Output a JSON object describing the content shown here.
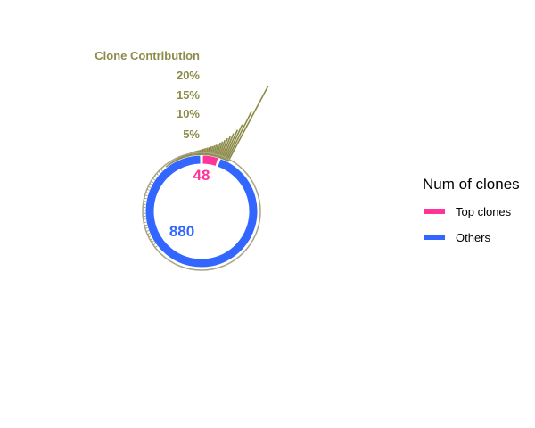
{
  "colors": {
    "top": "#ff3399",
    "others": "#3366ff",
    "spike": "#8c8b4a",
    "outer_ring": "#aaa488"
  },
  "chart_data": {
    "type": "pie",
    "title": "Clone Contribution",
    "radial_axis": {
      "ticks": [
        5,
        10,
        15,
        20
      ],
      "tick_labels": [
        "5%",
        "10%",
        "15%",
        "20%"
      ],
      "ylim": [
        0,
        20
      ]
    },
    "categories": [
      "Top clones",
      "Others"
    ],
    "values": [
      48,
      880
    ],
    "legend": {
      "title": "Num of clones",
      "entries": [
        "Top clones",
        "Others"
      ],
      "position": "right"
    },
    "clone_contribution_percent": [
      16.5,
      10.6,
      7.6,
      6.3,
      5.4,
      4.6,
      4.1,
      3.6,
      3.2,
      2.9,
      2.6,
      2.3,
      2.1,
      1.9,
      1.8,
      1.6,
      1.5,
      1.4,
      1.3,
      1.2,
      1.1,
      1.0,
      0.95,
      0.9,
      0.85,
      0.8,
      0.75,
      0.7,
      0.66,
      0.62,
      0.58,
      0.55,
      0.52,
      0.49,
      0.46,
      0.44,
      0.42,
      0.4,
      0.38,
      0.36,
      0.34,
      0.32,
      0.3,
      0.29,
      0.28,
      0.27,
      0.26,
      0.25
    ],
    "others_contribution_percent": 0.1
  }
}
